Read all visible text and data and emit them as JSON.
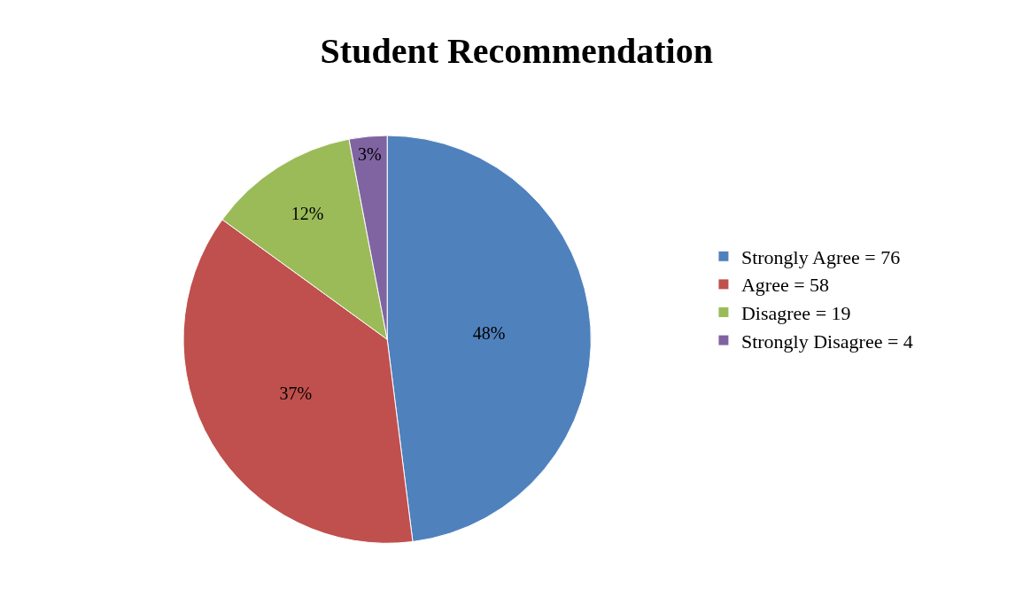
{
  "chart_data": {
    "type": "pie",
    "title": "Student Recommendation",
    "categories": [
      "Strongly Agree = 76",
      "Agree = 58",
      "Disagree = 19",
      "Strongly Disagree = 4"
    ],
    "values": [
      48,
      37,
      12,
      3
    ],
    "value_labels": [
      "48%",
      "37%",
      "12%",
      "3%"
    ],
    "colors": [
      "#4f81bd",
      "#c0504d",
      "#9bbb59",
      "#8064a2"
    ],
    "legend": "right"
  }
}
